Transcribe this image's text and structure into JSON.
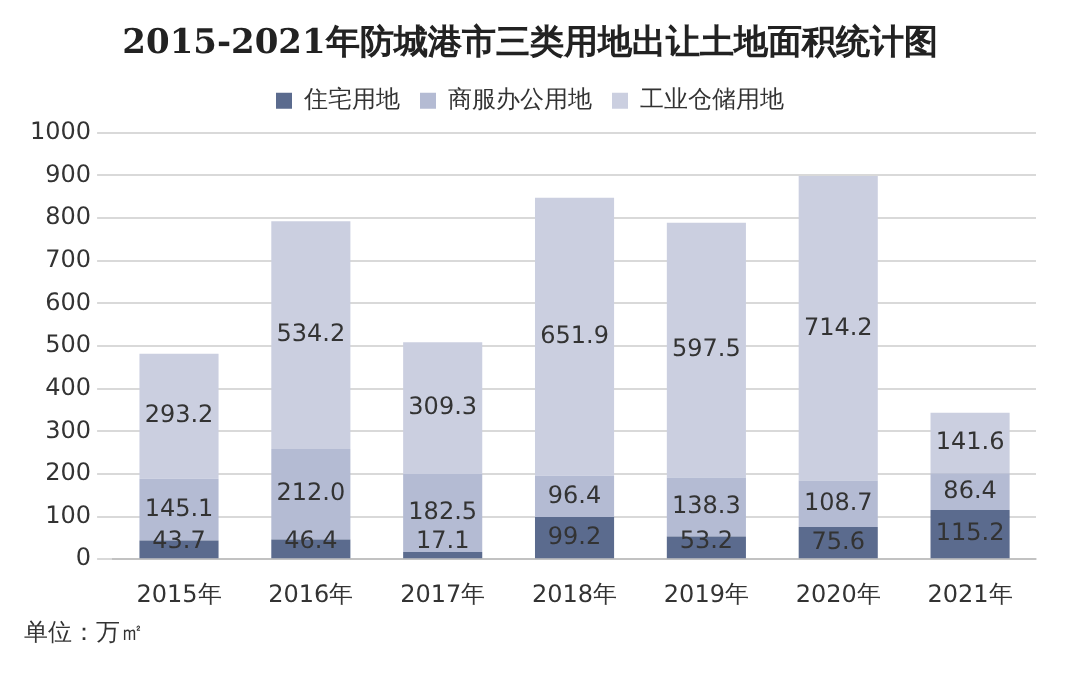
{
  "chart_data": {
    "type": "bar",
    "title": "2015-2021年防城港市三类用地出让土地面积统计图",
    "categories": [
      "2015年",
      "2016年",
      "2017年",
      "2018年",
      "2019年",
      "2020年",
      "2021年"
    ],
    "stacked": true,
    "ylim": [
      0,
      1000
    ],
    "yticks": [
      0,
      100,
      200,
      300,
      400,
      500,
      600,
      700,
      800,
      900,
      1000
    ],
    "grid": "y",
    "legend": "top",
    "annotations": [
      "单位：万㎡"
    ],
    "series": [
      {
        "name": "住宅用地",
        "color": "#5b6b8e",
        "values": [
          43.7,
          46.4,
          17.1,
          99.2,
          53.2,
          75.6,
          115.2
        ],
        "value_labels": [
          "43.7",
          "46.4",
          "17.1",
          "99.2",
          "53.2",
          "75.6",
          "115.2"
        ]
      },
      {
        "name": "商服办公用地",
        "color": "#b4bbd3",
        "values": [
          145.1,
          212.0,
          182.5,
          96.4,
          138.3,
          108.7,
          86.4
        ],
        "value_labels": [
          "145.1",
          "212.0",
          "182.5",
          "96.4",
          "138.3",
          "108.7",
          "86.4"
        ]
      },
      {
        "name": "工业仓储用地",
        "color": "#cbcfe0",
        "values": [
          293.2,
          534.2,
          309.3,
          651.9,
          597.5,
          714.2,
          141.6
        ],
        "value_labels": [
          "293.2",
          "534.2",
          "309.3",
          "651.9",
          "597.5",
          "714.2",
          "141.6"
        ]
      }
    ]
  }
}
